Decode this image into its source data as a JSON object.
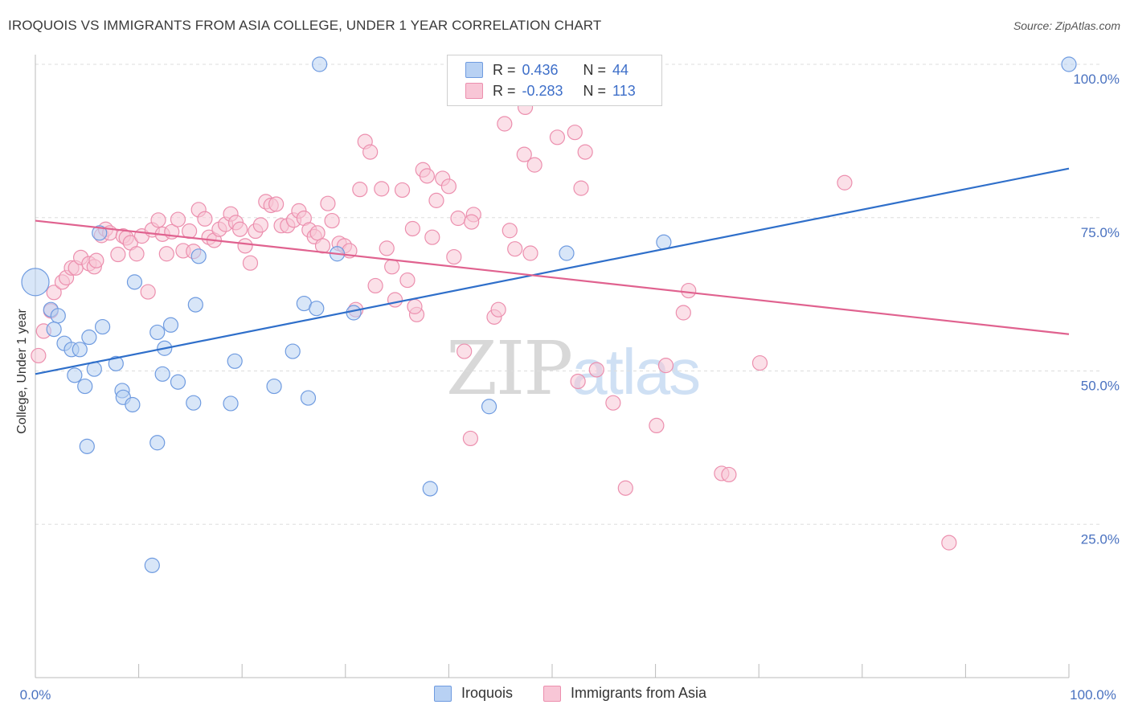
{
  "title": "IROQUOIS VS IMMIGRANTS FROM ASIA COLLEGE, UNDER 1 YEAR CORRELATION CHART",
  "source": "Source: ZipAtlas.com",
  "watermark": {
    "zip": "ZIP",
    "atlas": "atlas"
  },
  "legend": {
    "rows": [
      {
        "r_label": "R = ",
        "r_value": "0.436",
        "n_label": "N = ",
        "n_value": "44"
      },
      {
        "r_label": "R = ",
        "r_value": "-0.283",
        "n_label": "N = ",
        "n_value": "113"
      }
    ]
  },
  "colors": {
    "series1_fill": "#b8d1f3",
    "series1_stroke": "#6f9be0",
    "series1_line": "#2f6fca",
    "series2_fill": "#f8c6d6",
    "series2_stroke": "#ec8fae",
    "series2_line": "#e0628f",
    "tick_text": "#4a72c0",
    "grid": "#dddddd"
  },
  "chart_data": {
    "type": "scatter",
    "title": "IROQUOIS VS IMMIGRANTS FROM ASIA COLLEGE, UNDER 1 YEAR CORRELATION CHART",
    "xlabel": "",
    "ylabel": "College, Under 1 year",
    "xlim": [
      0,
      100
    ],
    "ylim": [
      0,
      100
    ],
    "x_tick_labels": [
      "0.0%",
      "100.0%"
    ],
    "y_tick_labels": [
      "25.0%",
      "50.0%",
      "75.0%",
      "100.0%"
    ],
    "y_ticks": [
      25,
      50,
      75,
      100
    ],
    "grid": "horizontal dashed",
    "legend_placement": "bottom",
    "series": [
      {
        "name": "Iroquois",
        "stats": {
          "R": 0.436,
          "N": 44
        },
        "trend": {
          "x": [
            0,
            100
          ],
          "y": [
            49.5,
            83.0
          ]
        },
        "points": [
          [
            0.0,
            64.5,
            "big"
          ],
          [
            1.5,
            60.0
          ],
          [
            2.2,
            59.0
          ],
          [
            1.8,
            56.8
          ],
          [
            2.8,
            54.5
          ],
          [
            3.5,
            53.5
          ],
          [
            4.3,
            53.5
          ],
          [
            3.8,
            49.3
          ],
          [
            5.2,
            55.5
          ],
          [
            5.7,
            50.3
          ],
          [
            6.5,
            57.2
          ],
          [
            7.8,
            51.2
          ],
          [
            8.4,
            46.8
          ],
          [
            8.5,
            45.7
          ],
          [
            9.4,
            44.5
          ],
          [
            12.3,
            49.5
          ],
          [
            12.5,
            53.7
          ],
          [
            11.8,
            56.3
          ],
          [
            13.1,
            57.5
          ],
          [
            13.8,
            48.2
          ],
          [
            6.2,
            72.5
          ],
          [
            9.6,
            64.5
          ],
          [
            15.5,
            60.8
          ],
          [
            15.3,
            44.8
          ],
          [
            4.8,
            47.5
          ],
          [
            5.0,
            37.7
          ],
          [
            11.8,
            38.3
          ],
          [
            11.3,
            18.3
          ],
          [
            19.3,
            51.6
          ],
          [
            18.9,
            44.7
          ],
          [
            23.1,
            47.5
          ],
          [
            24.9,
            53.2
          ],
          [
            26.0,
            61.0
          ],
          [
            27.2,
            60.2
          ],
          [
            26.4,
            45.6
          ],
          [
            30.8,
            59.5
          ],
          [
            29.2,
            69.1
          ],
          [
            27.5,
            100.0
          ],
          [
            38.2,
            30.8
          ],
          [
            43.9,
            44.2
          ],
          [
            51.4,
            69.2
          ],
          [
            60.8,
            71.0
          ],
          [
            15.8,
            68.7
          ],
          [
            100.0,
            100.0
          ]
        ]
      },
      {
        "name": "Immigrants from Asia",
        "stats": {
          "R": -0.283,
          "N": 113
        },
        "trend": {
          "x": [
            0,
            100
          ],
          "y": [
            74.5,
            56.0
          ]
        },
        "points": [
          [
            0.3,
            52.5
          ],
          [
            0.8,
            56.5
          ],
          [
            1.5,
            59.8
          ],
          [
            1.8,
            62.8
          ],
          [
            2.6,
            64.5
          ],
          [
            3.0,
            65.2
          ],
          [
            3.5,
            66.8
          ],
          [
            3.9,
            66.8
          ],
          [
            4.4,
            68.5
          ],
          [
            5.2,
            67.5
          ],
          [
            5.7,
            67.0
          ],
          [
            5.9,
            68.0
          ],
          [
            6.4,
            72.1
          ],
          [
            6.8,
            73.1
          ],
          [
            7.2,
            72.5
          ],
          [
            8.0,
            69.0
          ],
          [
            8.5,
            72.0
          ],
          [
            8.8,
            71.7
          ],
          [
            9.2,
            70.9
          ],
          [
            9.8,
            69.1
          ],
          [
            10.3,
            72.0
          ],
          [
            10.9,
            62.9
          ],
          [
            11.3,
            73.0
          ],
          [
            11.9,
            74.6
          ],
          [
            12.3,
            72.3
          ],
          [
            12.7,
            69.1
          ],
          [
            13.2,
            72.7
          ],
          [
            13.8,
            74.7
          ],
          [
            14.3,
            69.6
          ],
          [
            14.9,
            72.8
          ],
          [
            15.3,
            69.5
          ],
          [
            15.8,
            76.3
          ],
          [
            16.4,
            74.8
          ],
          [
            16.8,
            71.8
          ],
          [
            17.3,
            71.3
          ],
          [
            17.8,
            73.1
          ],
          [
            18.4,
            73.9
          ],
          [
            18.9,
            75.6
          ],
          [
            19.4,
            74.2
          ],
          [
            19.8,
            73.1
          ],
          [
            20.3,
            70.4
          ],
          [
            20.8,
            67.6
          ],
          [
            21.3,
            72.8
          ],
          [
            21.8,
            73.8
          ],
          [
            22.3,
            77.6
          ],
          [
            22.8,
            77.0
          ],
          [
            23.3,
            77.2
          ],
          [
            23.8,
            73.7
          ],
          [
            24.4,
            73.7
          ],
          [
            25.0,
            74.6
          ],
          [
            25.5,
            76.1
          ],
          [
            26.0,
            74.9
          ],
          [
            26.5,
            73.0
          ],
          [
            27.0,
            71.9
          ],
          [
            27.3,
            72.5
          ],
          [
            27.8,
            70.4
          ],
          [
            28.3,
            77.3
          ],
          [
            28.7,
            74.5
          ],
          [
            29.4,
            70.8
          ],
          [
            29.9,
            70.4
          ],
          [
            30.4,
            69.6
          ],
          [
            31.0,
            60.0
          ],
          [
            31.4,
            79.6
          ],
          [
            31.9,
            87.4
          ],
          [
            32.4,
            85.7
          ],
          [
            32.9,
            63.9
          ],
          [
            33.5,
            79.7
          ],
          [
            34.0,
            70.0
          ],
          [
            34.5,
            67.0
          ],
          [
            34.8,
            61.6
          ],
          [
            35.5,
            79.5
          ],
          [
            36.0,
            64.8
          ],
          [
            36.5,
            73.2
          ],
          [
            36.9,
            59.2
          ],
          [
            37.5,
            82.8
          ],
          [
            37.9,
            81.8
          ],
          [
            38.4,
            71.8
          ],
          [
            38.8,
            77.8
          ],
          [
            39.4,
            81.4
          ],
          [
            40.0,
            80.1
          ],
          [
            40.5,
            68.6
          ],
          [
            40.9,
            74.9
          ],
          [
            41.5,
            53.2
          ],
          [
            42.1,
            39.0
          ],
          [
            42.4,
            75.5
          ],
          [
            42.2,
            74.3
          ],
          [
            44.4,
            58.8
          ],
          [
            44.8,
            60.0
          ],
          [
            45.4,
            90.3
          ],
          [
            45.9,
            72.9
          ],
          [
            46.4,
            69.9
          ],
          [
            47.4,
            93.0
          ],
          [
            47.3,
            85.3
          ],
          [
            47.9,
            69.2
          ],
          [
            48.3,
            83.6
          ],
          [
            50.5,
            88.1
          ],
          [
            52.2,
            88.9
          ],
          [
            53.2,
            85.7
          ],
          [
            52.8,
            79.8
          ],
          [
            52.5,
            48.3
          ],
          [
            54.3,
            50.2
          ],
          [
            55.9,
            44.8
          ],
          [
            57.1,
            30.9
          ],
          [
            60.1,
            41.1
          ],
          [
            61.0,
            50.9
          ],
          [
            62.7,
            59.5
          ],
          [
            63.2,
            63.1
          ],
          [
            66.4,
            33.3
          ],
          [
            67.1,
            33.1
          ],
          [
            70.1,
            51.3
          ],
          [
            78.3,
            80.7
          ],
          [
            88.4,
            22.0
          ],
          [
            36.7,
            60.5
          ]
        ]
      }
    ]
  },
  "axes": {
    "x_left_label": "0.0%",
    "x_right_label": "100.0%",
    "y_tick_labels": [
      "25.0%",
      "50.0%",
      "75.0%",
      "100.0%"
    ]
  },
  "bottom_legend": [
    {
      "label": "Iroquois"
    },
    {
      "label": "Immigrants from Asia"
    }
  ]
}
